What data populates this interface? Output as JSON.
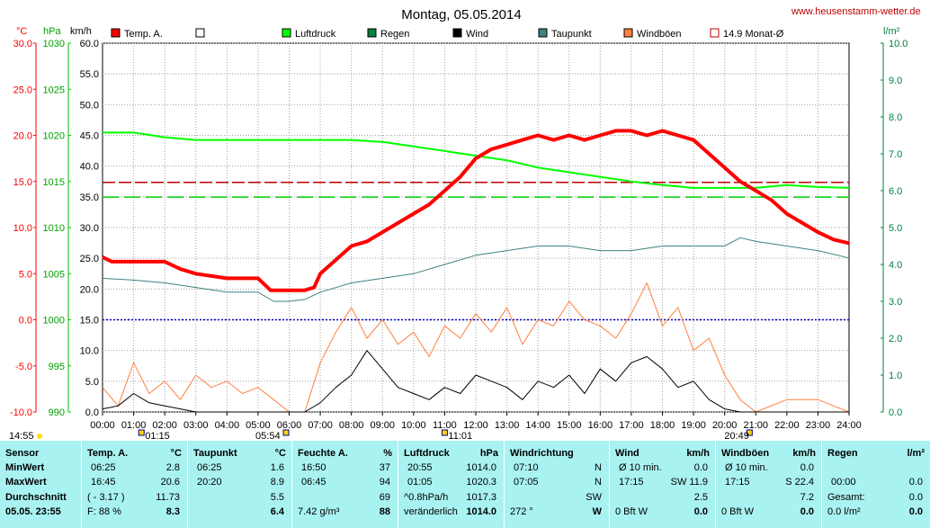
{
  "site": "www.heusenstamm-wetter.de",
  "chart_data": {
    "type": "line",
    "title": "Montag, 05.05.2014",
    "unit_labels": {
      "temp": "°C",
      "pressure": "hPa",
      "speed": "km/h",
      "rain": "l/m²"
    },
    "legend": [
      {
        "label": "Temp. A.",
        "color": "#ff0000",
        "style": "box"
      },
      {
        "label": "",
        "color": "#ffffff",
        "style": "box"
      },
      {
        "label": "Luftdruck",
        "color": "#00ff00",
        "style": "box"
      },
      {
        "label": "Regen",
        "color": "#008040",
        "style": "box"
      },
      {
        "label": "Wind",
        "color": "#000000",
        "style": "box"
      },
      {
        "label": "Taupunkt",
        "color": "#408080",
        "style": "box"
      },
      {
        "label": "Windböen",
        "color": "#ff8040",
        "style": "box"
      },
      {
        "label": "14.9 Monat-Ø",
        "color": "#c00000",
        "style": "line"
      }
    ],
    "x_ticks": [
      "00:00",
      "01:00",
      "02:00",
      "03:00",
      "04:00",
      "05:00",
      "06:00",
      "07:00",
      "08:00",
      "09:00",
      "10:00",
      "11:00",
      "12:00",
      "13:00",
      "14:00",
      "15:00",
      "16:00",
      "17:00",
      "18:00",
      "19:00",
      "20:00",
      "21:00",
      "22:00",
      "23:00",
      "24:00"
    ],
    "temp_ticks": [
      "30.0",
      "25.0",
      "20.0",
      "15.0",
      "10.0",
      "5.0",
      "0.0",
      "-5.0",
      "-10.0"
    ],
    "pressure_ticks": [
      "1030",
      "1025",
      "1020",
      "1015",
      "1010",
      "1005",
      "1000",
      "995",
      "990"
    ],
    "speed_ticks": [
      "60.0",
      "55.0",
      "50.0",
      "45.0",
      "40.0",
      "35.0",
      "30.0",
      "25.0",
      "20.0",
      "15.0",
      "10.0",
      "5.0",
      "0.0"
    ],
    "rain_ticks": [
      "10.0",
      "9.0",
      "8.0",
      "7.0",
      "6.0",
      "5.0",
      "4.0",
      "3.0",
      "2.0",
      "1.0",
      "0.0"
    ],
    "temp_range": [
      -10,
      30
    ],
    "pressure_range": [
      990,
      1030
    ],
    "speed_range": [
      0,
      60
    ],
    "rain_range": [
      0,
      10
    ],
    "markers": [
      {
        "label": "14:55",
        "x": -0.4
      },
      {
        "label": "01:15",
        "x": 1.25
      },
      {
        "label": "05:54",
        "x": 5.9
      },
      {
        "label": "11:01",
        "x": 11.0
      },
      {
        "label": "20:49",
        "x": 20.8
      }
    ],
    "monthly_avg_temp": 14.9,
    "pressure_avg": 1013.3,
    "freezing_line": 0.0,
    "series": [
      {
        "name": "Temp. A.",
        "axis": "temp",
        "color": "#ff0000",
        "x": [
          0,
          0.3,
          2,
          2.5,
          3,
          4,
          5,
          5.4,
          6,
          6.5,
          6.8,
          7,
          7.5,
          8,
          8.5,
          9,
          9.5,
          10,
          10.5,
          11,
          11.5,
          12,
          12.5,
          13,
          13.5,
          14,
          14.5,
          15,
          15.5,
          16,
          16.5,
          17,
          17.5,
          18,
          18.5,
          19,
          19.5,
          20,
          20.5,
          21,
          21.5,
          22,
          22.5,
          23,
          23.5,
          24
        ],
        "y": [
          6.8,
          6.3,
          6.3,
          5.5,
          5.0,
          4.5,
          4.5,
          3.2,
          3.2,
          3.2,
          3.5,
          5.0,
          6.5,
          8.0,
          8.5,
          9.5,
          10.5,
          11.5,
          12.5,
          14.0,
          15.5,
          17.5,
          18.5,
          19.0,
          19.5,
          20.0,
          19.5,
          20.0,
          19.5,
          20.0,
          20.5,
          20.5,
          20.0,
          20.5,
          20.0,
          19.5,
          18.0,
          16.5,
          15.0,
          14.0,
          13.0,
          11.5,
          10.5,
          9.5,
          8.7,
          8.3
        ]
      },
      {
        "name": "Luftdruck",
        "axis": "pressure",
        "color": "#00ff00",
        "x": [
          0,
          1,
          2,
          3,
          4,
          5,
          6,
          7,
          8,
          9,
          10,
          11,
          12,
          13,
          14,
          15,
          16,
          17,
          18,
          19,
          20,
          21,
          22,
          23,
          24
        ],
        "y": [
          1020.3,
          1020.3,
          1019.8,
          1019.5,
          1019.5,
          1019.5,
          1019.5,
          1019.5,
          1019.5,
          1019.3,
          1018.8,
          1018.3,
          1017.8,
          1017.3,
          1016.5,
          1016.0,
          1015.5,
          1015.0,
          1014.6,
          1014.3,
          1014.3,
          1014.3,
          1014.6,
          1014.4,
          1014.3
        ]
      },
      {
        "name": "Taupunkt",
        "axis": "temp",
        "color": "#408080",
        "x": [
          0,
          1,
          2,
          3,
          4,
          5,
          5.5,
          6,
          6.5,
          7,
          8,
          9,
          10,
          11,
          12,
          13,
          14,
          15,
          16,
          17,
          18,
          19,
          20,
          20.5,
          21,
          22,
          23,
          24
        ],
        "y": [
          4.5,
          4.3,
          4.0,
          3.5,
          3.0,
          3.0,
          2.0,
          2.0,
          2.2,
          3.0,
          4.0,
          4.5,
          5.0,
          6.0,
          7.0,
          7.5,
          8.0,
          8.0,
          7.5,
          7.5,
          8.0,
          8.0,
          8.0,
          8.9,
          8.5,
          8.0,
          7.5,
          6.7
        ]
      },
      {
        "name": "Wind",
        "axis": "speed",
        "color": "#000000",
        "x": [
          0,
          0.5,
          1,
          1.5,
          2,
          2.5,
          3,
          3.5,
          4,
          4.5,
          5,
          5.5,
          6,
          6.5,
          7,
          7.5,
          8,
          8.5,
          9,
          9.5,
          10,
          10.5,
          11,
          11.5,
          12,
          12.5,
          13,
          13.5,
          14,
          14.5,
          15,
          15.5,
          16,
          16.5,
          17,
          17.5,
          18,
          18.5,
          19,
          19.5,
          20,
          20.5,
          21,
          22,
          23,
          24
        ],
        "y": [
          0.5,
          1,
          3,
          1.5,
          1,
          0.5,
          0,
          0,
          0,
          0,
          0,
          0,
          0,
          0,
          1.5,
          4,
          6,
          10,
          7,
          4,
          3,
          2,
          4,
          3,
          6,
          5,
          4,
          2,
          5,
          4,
          6,
          3,
          7,
          5,
          8,
          9,
          7,
          4,
          5,
          2,
          0.5,
          0,
          0,
          0,
          0,
          0
        ]
      },
      {
        "name": "Windböen",
        "axis": "speed",
        "color": "#ff8040",
        "x": [
          0,
          0.5,
          1,
          1.5,
          2,
          2.5,
          3,
          3.5,
          4,
          4.5,
          5,
          5.5,
          6,
          6.5,
          7,
          7.5,
          8,
          8.5,
          9,
          9.5,
          10,
          10.5,
          11,
          11.5,
          12,
          12.5,
          13,
          13.5,
          14,
          14.5,
          15,
          15.5,
          16,
          16.5,
          17,
          17.5,
          18,
          18.5,
          19,
          19.5,
          20,
          20.5,
          21,
          22,
          23,
          24
        ],
        "y": [
          4,
          1,
          8,
          3,
          5,
          2,
          6,
          4,
          5,
          3,
          4,
          2,
          0,
          0,
          8,
          13,
          17,
          12,
          15,
          11,
          13,
          9,
          14,
          12,
          16,
          13,
          17,
          11,
          15,
          14,
          18,
          15,
          14,
          12,
          16,
          21,
          14,
          17,
          10,
          12,
          6,
          2,
          0,
          2,
          2,
          0
        ]
      }
    ]
  },
  "table": {
    "row_labels": [
      "Sensor",
      "MinWert",
      "MaxWert",
      "Durchschnitt",
      "05.05. 23:55"
    ],
    "columns": [
      {
        "head": "Temp. A.",
        "unit": "°C",
        "min_time": "06:25",
        "min": "2.8",
        "max_time": "16:45",
        "max": "20.6",
        "avg_note": "( - 3.17 )",
        "avg": "11.73",
        "cur_note": "F: 88 %",
        "cur": "8.3"
      },
      {
        "head": "Taupunkt",
        "unit": "°C",
        "min_time": "06:25",
        "min": "1.6",
        "max_time": "20:20",
        "max": "8.9",
        "avg_note": "",
        "avg": "5.5",
        "cur_note": "",
        "cur": "6.4"
      },
      {
        "head": "Feuchte A.",
        "unit": "%",
        "min_time": "16:50",
        "min": "37",
        "max_time": "06:45",
        "max": "94",
        "avg_note": "",
        "avg": "69",
        "cur_note": "7.42 g/m³",
        "cur": "88"
      },
      {
        "head": "Luftdruck",
        "unit": "hPa",
        "min_time": "20:55",
        "min": "1014.0",
        "max_time": "01:05",
        "max": "1020.3",
        "avg_note": "^0.8hPa/h",
        "avg": "1017.3",
        "cur_note": "veränderlich",
        "cur": "1014.0"
      },
      {
        "head": "Windrichtung",
        "unit": "",
        "min_time": "07:10",
        "min": "N",
        "max_time": "07:05",
        "max": "N",
        "avg_note": "",
        "avg": "SW",
        "cur_note": "272 °",
        "cur": "W"
      },
      {
        "head": "Wind",
        "unit": "km/h",
        "min_time": "Ø 10 min.",
        "min": "0.0",
        "max_time": "17:15",
        "max": "SW 11.9",
        "avg_note": "",
        "avg": "2.5",
        "cur_note": "0 Bft W",
        "cur": "0.0"
      },
      {
        "head": "Windböen",
        "unit": "km/h",
        "min_time": "Ø 10 min.",
        "min": "0.0",
        "max_time": "17:15",
        "max": "S 22.4",
        "avg_note": "",
        "avg": "7.2",
        "cur_note": "0 Bft W",
        "cur": "0.0"
      },
      {
        "head": "Regen",
        "unit": "l/m²",
        "min_time": "",
        "min": "",
        "max_time": "00:00",
        "max": "0.0",
        "avg_note": "Gesamt:",
        "avg": "0.0",
        "cur_note": "0.0 l/m²",
        "cur": "0.0"
      }
    ]
  }
}
